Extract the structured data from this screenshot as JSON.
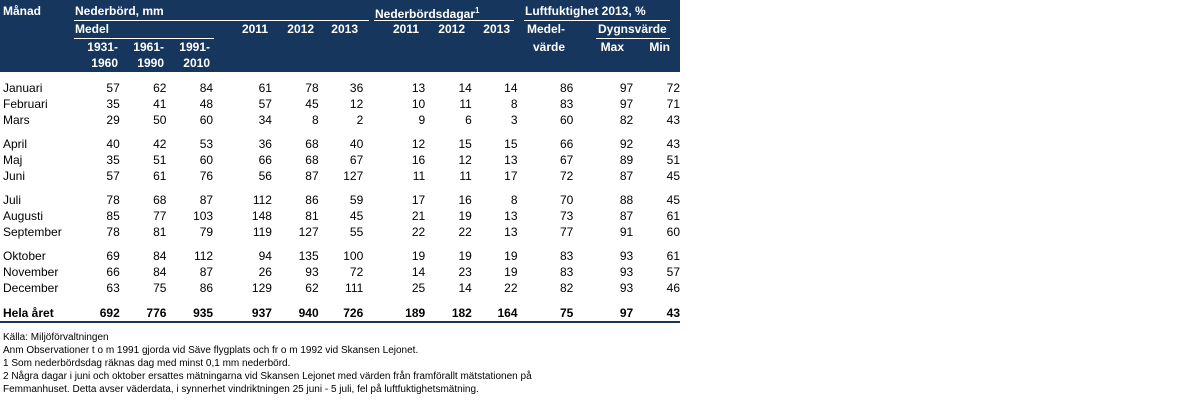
{
  "header": {
    "manad": "Månad",
    "nederbord": "Nederbörd, mm",
    "medel": "Medel",
    "p1": [
      "1931-",
      "1960"
    ],
    "p2": [
      "1961-",
      "1990"
    ],
    "p3": [
      "1991-",
      "2010"
    ],
    "y2011": "2011",
    "y2012": "2012",
    "y2013": "2013",
    "dagar": "Nederbördsdagar",
    "dagar_sup": "1",
    "d2011": "2011",
    "d2012": "2012",
    "d2013": "2013",
    "luft": "Luftfuktighet 2013, %",
    "medelvarde": [
      "Medel-",
      "värde"
    ],
    "dygnsvarde": "Dygnsvärde",
    "max": "Max",
    "min": "Min"
  },
  "rows": [
    {
      "m": "Januari",
      "a": "57",
      "b": "62",
      "c": "84",
      "d": "61",
      "e": "78",
      "f": "36",
      "g": "13",
      "h": "14",
      "i": "14",
      "j": "86",
      "k": "97",
      "l": "72"
    },
    {
      "m": "Februari",
      "a": "35",
      "b": "41",
      "c": "48",
      "d": "57",
      "e": "45",
      "f": "12",
      "g": "10",
      "h": "11",
      "i": "8",
      "j": "83",
      "k": "97",
      "l": "71"
    },
    {
      "m": "Mars",
      "a": "29",
      "b": "50",
      "c": "60",
      "d": "34",
      "e": "8",
      "f": "2",
      "g": "9",
      "h": "6",
      "i": "3",
      "j": "60",
      "k": "82",
      "l": "43"
    },
    {
      "m": "April",
      "a": "40",
      "b": "42",
      "c": "53",
      "d": "36",
      "e": "68",
      "f": "40",
      "g": "12",
      "h": "15",
      "i": "15",
      "j": "66",
      "k": "92",
      "l": "43"
    },
    {
      "m": "Maj",
      "a": "35",
      "b": "51",
      "c": "60",
      "d": "66",
      "e": "68",
      "f": "67",
      "g": "16",
      "h": "12",
      "i": "13",
      "j": "67",
      "k": "89",
      "l": "51"
    },
    {
      "m": "Juni",
      "a": "57",
      "b": "61",
      "c": "76",
      "d": "56",
      "e": "87",
      "f": "127",
      "g": "11",
      "h": "11",
      "i": "17",
      "j": "72",
      "k": "87",
      "l": "45"
    },
    {
      "m": "Juli",
      "a": "78",
      "b": "68",
      "c": "87",
      "d": "112",
      "e": "86",
      "f": "59",
      "g": "17",
      "h": "16",
      "i": "8",
      "j": "70",
      "k": "88",
      "l": "45"
    },
    {
      "m": "Augusti",
      "a": "85",
      "b": "77",
      "c": "103",
      "d": "148",
      "e": "81",
      "f": "45",
      "g": "21",
      "h": "19",
      "i": "13",
      "j": "73",
      "k": "87",
      "l": "61"
    },
    {
      "m": "September",
      "a": "78",
      "b": "81",
      "c": "79",
      "d": "119",
      "e": "127",
      "f": "55",
      "g": "22",
      "h": "22",
      "i": "13",
      "j": "77",
      "k": "91",
      "l": "60"
    },
    {
      "m": "Oktober",
      "a": "69",
      "b": "84",
      "c": "112",
      "d": "94",
      "e": "135",
      "f": "100",
      "g": "19",
      "h": "19",
      "i": "19",
      "j": "83",
      "k": "93",
      "l": "61"
    },
    {
      "m": "November",
      "a": "66",
      "b": "84",
      "c": "87",
      "d": "26",
      "e": "93",
      "f": "72",
      "g": "14",
      "h": "23",
      "i": "19",
      "j": "83",
      "k": "93",
      "l": "57"
    },
    {
      "m": "December",
      "a": "63",
      "b": "75",
      "c": "86",
      "d": "129",
      "e": "62",
      "f": "111",
      "g": "25",
      "h": "14",
      "i": "22",
      "j": "82",
      "k": "93",
      "l": "46"
    }
  ],
  "total": {
    "m": "Hela året",
    "a": "692",
    "b": "776",
    "c": "935",
    "d": "937",
    "e": "940",
    "f": "726",
    "g": "189",
    "h": "182",
    "i": "164",
    "j": "75",
    "k": "97",
    "l": "43"
  },
  "footer": [
    "Källa:  Miljöförvaltningen",
    "Anm Observationer t o m 1991 gjorda vid Säve flygplats och fr o m 1992 vid Skansen Lejonet.",
    "1  Som nederbördsdag räknas dag med minst 0,1 mm nederbörd.",
    "2  Några dagar i juni och oktober ersattes mätningarna vid Skansen Lejonet med värden från framförallt mätstationen på",
    "Femmanhuset. Detta avser väderdata, i synnerhet vindriktningen 25 juni - 5 juli, fel på luftfuktighetsmätning."
  ]
}
